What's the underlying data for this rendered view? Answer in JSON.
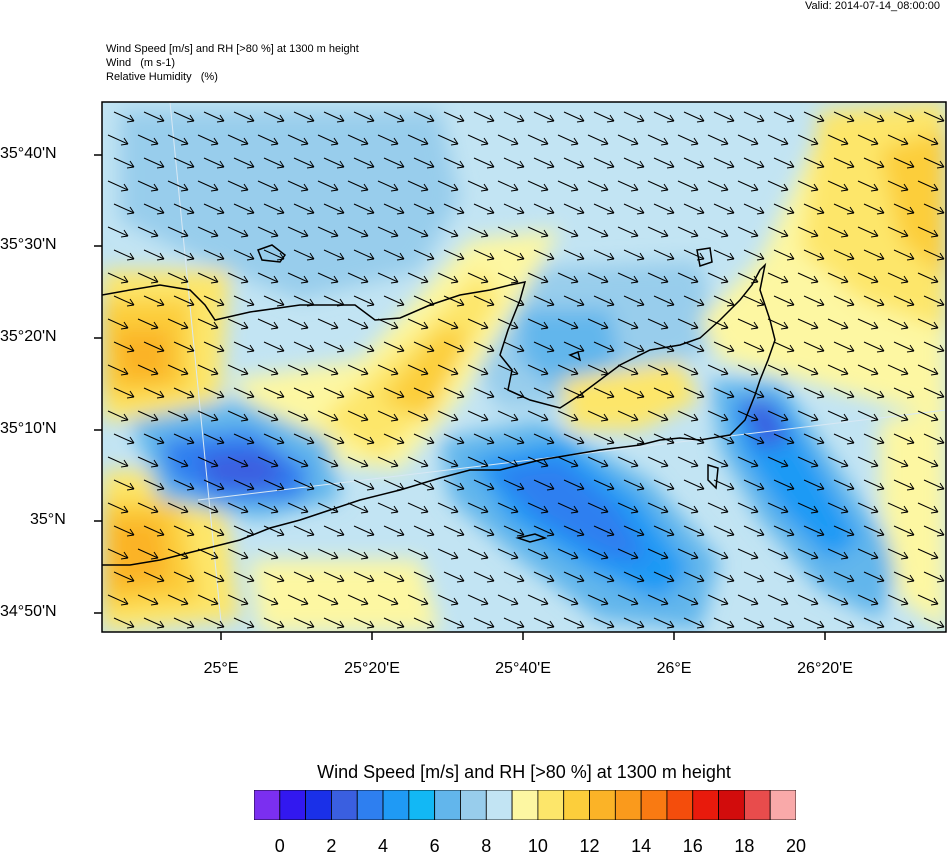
{
  "header": {
    "valid": "Valid: 2014-07-14_08:00:00",
    "title_lines": [
      "Wind Speed [m/s] and RH [>80 %] at 1300 m height",
      "Wind   (m s-1)",
      "Relative Humidity   (%)"
    ]
  },
  "map": {
    "lat_labels": [
      "35°40'N",
      "35°30'N",
      "35°20'N",
      "35°10'N",
      "35°N",
      "34°50'N"
    ],
    "lon_labels": [
      "25°E",
      "25°20'E",
      "25°40'E",
      "26°E",
      "26°20'E"
    ],
    "wind_direction": "north-west to south-east",
    "colors": {
      "frame": "#000000",
      "coast": "#000000"
    }
  },
  "colorbar": {
    "title": "Wind Speed [m/s] and RH [>80 %] at 1300 m height",
    "colors": [
      "#7b2ff0",
      "#3218f0",
      "#1a30e8",
      "#3a5fe0",
      "#2e7ff0",
      "#1f9af5",
      "#12b8f5",
      "#62b6ec",
      "#98cdec",
      "#c2e4f3",
      "#fdf7a2",
      "#fde66a",
      "#fcce3b",
      "#fbb327",
      "#fa9a1c",
      "#f97a12",
      "#f44d0c",
      "#e81a0c",
      "#d20c0c",
      "#e84c4c",
      "#f9a9a9"
    ],
    "labels": [
      "0",
      "2",
      "4",
      "6",
      "8",
      "10",
      "12",
      "14",
      "16",
      "18",
      "20"
    ]
  }
}
